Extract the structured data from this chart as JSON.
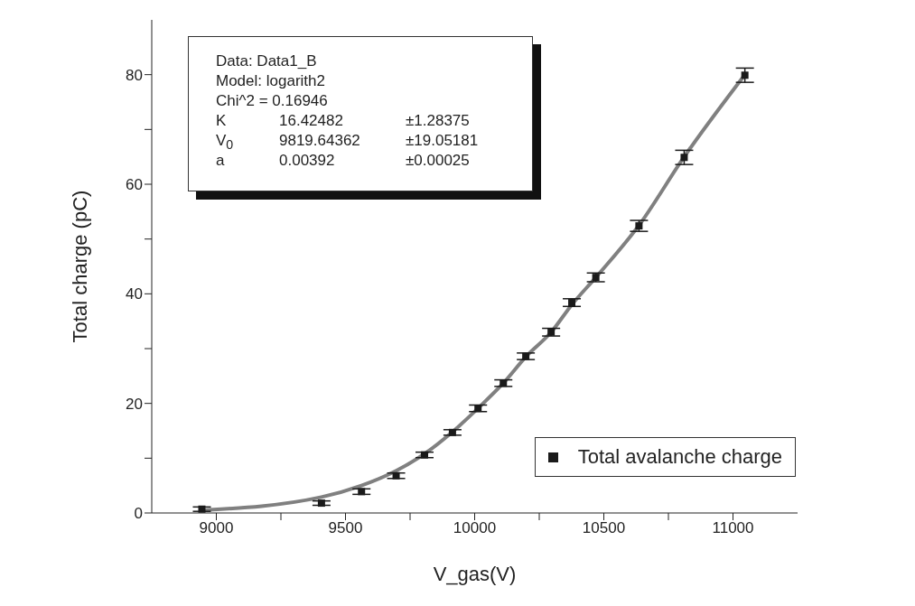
{
  "chart_data": {
    "type": "scatter",
    "xlabel": "V_gas(V)",
    "ylabel": "Total charge (pC)",
    "xlim": [
      8750,
      11250
    ],
    "xticks": [
      9000,
      {
        "value": 9250,
        "label": null
      },
      9500,
      {
        "value": 9750,
        "label": null
      },
      10000,
      {
        "value": 10250,
        "label": null
      },
      10500,
      {
        "value": 10750,
        "label": null
      },
      11000
    ],
    "ylim": [
      0,
      90
    ],
    "yticks": [
      0,
      {
        "value": 10,
        "label": null
      },
      20,
      {
        "value": 30,
        "label": null
      },
      40,
      {
        "value": 50,
        "label": null
      },
      60,
      {
        "value": 70,
        "label": null
      },
      80
    ],
    "grid": false,
    "legend": "bottom right",
    "marker": "square",
    "series": [
      {
        "type": "line",
        "color": "#808080",
        "marker": "none",
        "line_style": "solid",
        "x": [
          8944,
          9407,
          9562,
          9696,
          9806,
          9914,
          10013,
          10111,
          10198,
          10296,
          10376,
          10469,
          10636,
          10811,
          11046
        ],
        "values": [
          0.5,
          2.9,
          5.0,
          7.7,
          10.8,
          14.8,
          19.1,
          23.7,
          28.5,
          33.0,
          38.0,
          43.0,
          52.5,
          65.0,
          80.0
        ]
      },
      {
        "name": "Total avalanche charge",
        "color": "#1a1a1a",
        "x": [
          8944,
          9407,
          9562,
          9696,
          9806,
          9914,
          10013,
          10111,
          10198,
          10296,
          10376,
          10469,
          10636,
          10811,
          11046
        ],
        "values": [
          0.7,
          1.8,
          3.9,
          6.8,
          10.6,
          14.7,
          19.1,
          23.7,
          28.6,
          33.0,
          38.4,
          43.0,
          52.4,
          64.9,
          79.9
        ],
        "errors": [
          0.4,
          0.4,
          0.5,
          0.5,
          0.5,
          0.5,
          0.6,
          0.6,
          0.6,
          0.7,
          0.7,
          0.8,
          1.0,
          1.3,
          1.3
        ]
      }
    ],
    "annotations": [
      "Data: Data1_B",
      "Model: logarith2",
      "Chi^2 = 0.16946",
      "K",
      "16.42482",
      "±1.28375",
      "V$_{0}$",
      "9819.64362",
      "±19.05181",
      "a",
      "0.00392",
      "±0.00025"
    ]
  }
}
